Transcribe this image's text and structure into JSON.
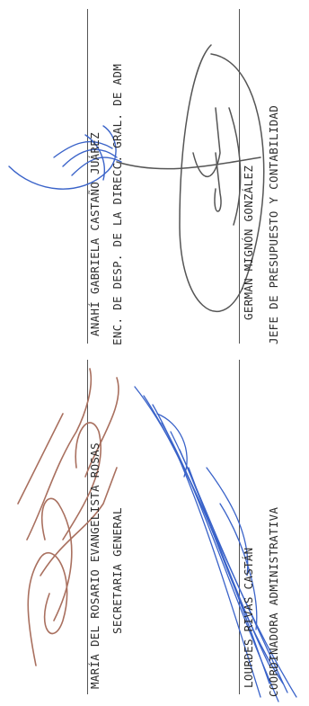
{
  "signatories": [
    {
      "name": "MARÍA DEL ROSARIO EVANGELISTA ROSAS",
      "title": "SECRETARIA GENERAL"
    },
    {
      "name": "LOURDES RIVAS CASTÁN",
      "title": "COORDINADORA ADMINISTRATIVA"
    },
    {
      "name": "ANAHÍ GABRIELA CASTAÑO JUÁREZ",
      "title": "ENC. DE DESP. DE LA DIRECC. GRAL. DE ADM"
    },
    {
      "name": "GERMÁN MIGNÓN GONZÁLEZ",
      "title": "JEFE DE PRESUPUESTO Y CONTABILIDAD"
    }
  ],
  "colors": {
    "text": "#2b2b2b",
    "signature_brown": "#a9705f",
    "signature_blue": "#3a63c9",
    "signature_gray": "#555555"
  }
}
